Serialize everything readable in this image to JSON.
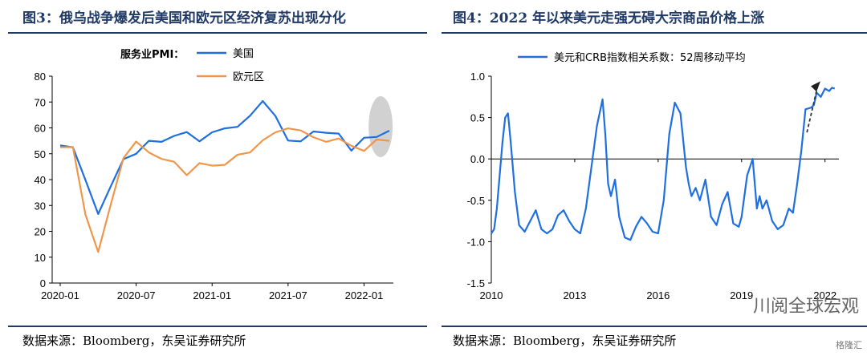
{
  "colors": {
    "title": "#1f3a66",
    "us": "#1f6fe0",
    "eu": "#f0964b",
    "highlight": "#c9c9c9"
  },
  "figure3": {
    "title": "图3：俄乌战争爆发后美国和欧元区经济复苏出现分化",
    "legend_title": "服务业PMI：",
    "source": "数据来源：Bloomberg，东吴证券研究所"
  },
  "figure4": {
    "title": "图4：2022 年以来美元走强无碍大宗商品价格上涨",
    "source": "数据来源：Bloomberg，东吴证券研究所"
  },
  "watermark": {
    "text": "川阅全球宏观",
    "brand": "格隆汇"
  },
  "chart_data": [
    {
      "type": "line",
      "ylim": [
        0,
        80
      ],
      "yticks": [
        "0",
        "10",
        "20",
        "30",
        "40",
        "50",
        "60",
        "70",
        "80"
      ],
      "xtick_labels": [
        "2020-01",
        "2020-07",
        "2021-01",
        "2021-07",
        "2022-01"
      ],
      "x": [
        "2020-01",
        "2020-02",
        "2020-03",
        "2020-04",
        "2020-05",
        "2020-06",
        "2020-07",
        "2020-08",
        "2020-09",
        "2020-10",
        "2020-11",
        "2020-12",
        "2021-01",
        "2021-02",
        "2021-03",
        "2021-04",
        "2021-05",
        "2021-06",
        "2021-07",
        "2021-08",
        "2021-09",
        "2021-10",
        "2021-11",
        "2021-12",
        "2022-01",
        "2022-02",
        "2022-03"
      ],
      "series": [
        {
          "name": "美国",
          "color": "#1f6fe0",
          "values": [
            53.2,
            52.5,
            39.8,
            26.7,
            37.5,
            47.9,
            50.0,
            55.0,
            54.6,
            56.9,
            58.4,
            54.8,
            58.3,
            59.8,
            60.4,
            64.7,
            70.4,
            64.6,
            55.1,
            54.8,
            58.6,
            58.1,
            57.8,
            51.2,
            56.2,
            56.5,
            58.9
          ]
        },
        {
          "name": "欧元区",
          "color": "#f0964b",
          "values": [
            52.5,
            52.6,
            26.4,
            12.0,
            30.5,
            48.3,
            54.7,
            50.5,
            48.0,
            46.9,
            41.7,
            46.4,
            45.4,
            45.7,
            49.6,
            50.5,
            55.2,
            58.3,
            59.8,
            59.0,
            56.4,
            54.6,
            55.9,
            53.1,
            51.1,
            55.5,
            55.0
          ]
        }
      ],
      "highlight": "2022-02 — 2022-03"
    },
    {
      "type": "line",
      "ylim": [
        -1.5,
        1.0
      ],
      "yticks": [
        "-1.5",
        "-1.0",
        "-0.5",
        "0.0",
        "0.5",
        "1.0"
      ],
      "xtick_labels": [
        "2010",
        "2013",
        "2016",
        "2019",
        "2022"
      ],
      "x_range": [
        2010.0,
        2022.5
      ],
      "series": [
        {
          "name": "美元和CRB指数相关系数：52周移动平均",
          "color": "#1f6fe0",
          "x": [
            2010.0,
            2010.1,
            2010.2,
            2010.3,
            2010.4,
            2010.5,
            2010.6,
            2010.7,
            2010.85,
            2011.0,
            2011.2,
            2011.4,
            2011.6,
            2011.8,
            2012.0,
            2012.2,
            2012.4,
            2012.6,
            2012.8,
            2013.0,
            2013.2,
            2013.4,
            2013.6,
            2013.8,
            2014.0,
            2014.1,
            2014.2,
            2014.3,
            2014.45,
            2014.6,
            2014.8,
            2015.0,
            2015.2,
            2015.4,
            2015.6,
            2015.8,
            2016.0,
            2016.2,
            2016.4,
            2016.6,
            2016.8,
            2017.0,
            2017.1,
            2017.2,
            2017.35,
            2017.5,
            2017.7,
            2017.9,
            2018.1,
            2018.3,
            2018.5,
            2018.7,
            2018.9,
            2019.0,
            2019.2,
            2019.4,
            2019.55,
            2019.65,
            2019.75,
            2019.9,
            2020.1,
            2020.3,
            2020.5,
            2020.7,
            2020.85,
            2021.0,
            2021.15,
            2021.3,
            2021.5,
            2021.6,
            2021.7,
            2021.85,
            2022.0,
            2022.15,
            2022.25,
            2022.35
          ],
          "values": [
            -0.9,
            -0.85,
            -0.6,
            -0.2,
            0.2,
            0.5,
            0.55,
            0.2,
            -0.4,
            -0.8,
            -0.88,
            -0.75,
            -0.62,
            -0.85,
            -0.9,
            -0.85,
            -0.68,
            -0.62,
            -0.75,
            -0.85,
            -0.9,
            -0.6,
            -0.1,
            0.4,
            0.72,
            0.3,
            -0.3,
            -0.45,
            -0.25,
            -0.7,
            -0.95,
            -0.98,
            -0.82,
            -0.7,
            -0.78,
            -0.88,
            -0.9,
            -0.5,
            0.3,
            0.68,
            0.55,
            -0.1,
            -0.3,
            -0.45,
            -0.35,
            -0.5,
            -0.25,
            -0.7,
            -0.8,
            -0.55,
            -0.4,
            -0.78,
            -0.82,
            -0.7,
            -0.2,
            0.0,
            -0.6,
            -0.45,
            -0.6,
            -0.5,
            -0.75,
            -0.85,
            -0.8,
            -0.6,
            -0.65,
            -0.3,
            0.1,
            0.6,
            0.62,
            0.65,
            0.8,
            0.75,
            0.85,
            0.82,
            0.86,
            0.85
          ]
        }
      ],
      "annotation": "up-arrow (trend 2021.9 → 2022.2)"
    }
  ]
}
